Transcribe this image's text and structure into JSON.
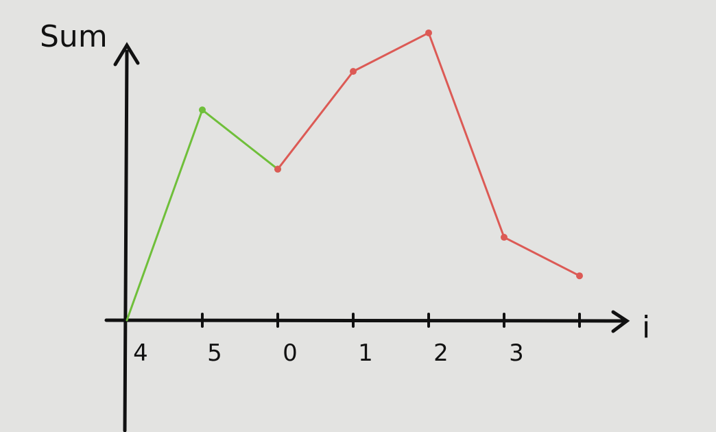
{
  "chart_data": {
    "type": "line",
    "xlabel": "i",
    "ylabel": "Sum",
    "categories": [
      "4",
      "5",
      "0",
      "1",
      "2",
      "3",
      ""
    ],
    "ylim": [
      0,
      10
    ],
    "grid": false,
    "series": [
      {
        "color": "#6fbf3a",
        "points": [
          [
            0,
            0
          ],
          [
            1,
            7.1
          ],
          [
            2,
            5.1
          ]
        ]
      },
      {
        "color": "#dc5a55",
        "points": [
          [
            2,
            5.1
          ],
          [
            3,
            8.4
          ],
          [
            4,
            9.7
          ],
          [
            5,
            2.8
          ],
          [
            6,
            1.5
          ]
        ]
      }
    ]
  }
}
